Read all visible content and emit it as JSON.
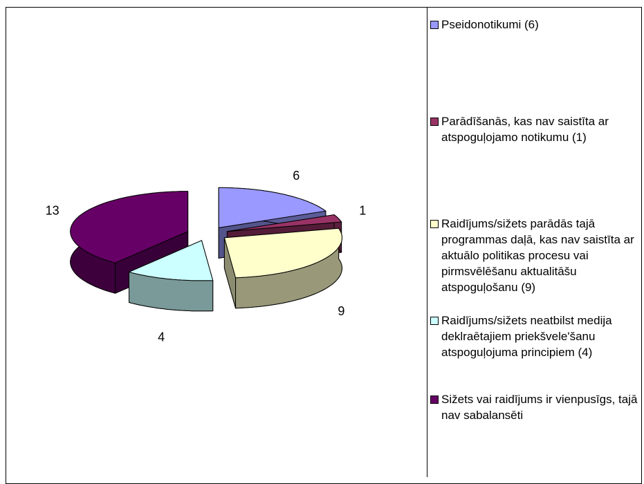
{
  "chart_data": {
    "type": "pie3d",
    "categories": [
      "Pseidonotikumi (6)",
      "Parādīšanās, kas nav saistīta ar atspoguļojamo notikumu (1)",
      "Raidījums/sižets parādās tajā programmas daļā, kas nav saistīta ar aktuālo politikas procesu vai pirmsvēlēšanu aktualitāšu atspoguļošanu (9)",
      "Raidījums/sižets neatbilst medija deklraētajiem priekšvele'šanu atspoguļojuma principiem (4)",
      "Sižets vai raidījums ir vienpusīgs, tajā nav sabalansēti"
    ],
    "values": [
      6,
      1,
      9,
      4,
      13
    ],
    "colors": [
      "#9999ff",
      "#993366",
      "#ffffcc",
      "#ccffff",
      "#660066"
    ],
    "legend": "right"
  }
}
